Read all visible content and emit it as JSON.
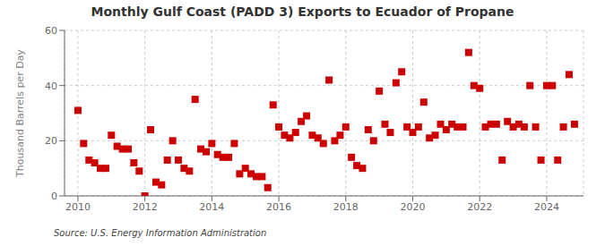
{
  "chart_data": {
    "type": "scatter",
    "title": "Monthly Gulf Coast (PADD 3) Exports to Ecuador of Propane",
    "y_label": "Thousand Barrels per Day",
    "annotation": "Source: U.S. Energy Information Administration",
    "color": "#cc0000",
    "marker": "square",
    "grid": true,
    "xlim": [
      2009.6,
      2025.1
    ],
    "xticks": [
      2010,
      2012,
      2014,
      2016,
      2018,
      2020,
      2022,
      2024
    ],
    "ylim": [
      0,
      60
    ],
    "yticks": [
      0,
      20,
      40,
      60
    ],
    "x": [
      2010.0,
      2010.17,
      2010.33,
      2010.5,
      2010.67,
      2010.83,
      2011.0,
      2011.17,
      2011.33,
      2011.5,
      2011.67,
      2011.83,
      2012.0,
      2012.17,
      2012.33,
      2012.5,
      2012.67,
      2012.83,
      2013.0,
      2013.17,
      2013.33,
      2013.5,
      2013.67,
      2013.83,
      2014.0,
      2014.17,
      2014.33,
      2014.5,
      2014.67,
      2014.83,
      2015.0,
      2015.17,
      2015.33,
      2015.5,
      2015.67,
      2015.83,
      2016.0,
      2016.17,
      2016.33,
      2016.5,
      2016.67,
      2016.83,
      2017.0,
      2017.17,
      2017.33,
      2017.5,
      2017.67,
      2017.83,
      2018.0,
      2018.17,
      2018.33,
      2018.5,
      2018.67,
      2018.83,
      2019.0,
      2019.17,
      2019.33,
      2019.5,
      2019.67,
      2019.83,
      2020.0,
      2020.17,
      2020.33,
      2020.5,
      2020.67,
      2020.83,
      2021.0,
      2021.17,
      2021.33,
      2021.5,
      2021.67,
      2021.83,
      2022.0,
      2022.17,
      2022.33,
      2022.5,
      2022.67,
      2022.83,
      2023.0,
      2023.17,
      2023.33,
      2023.5,
      2023.67,
      2023.83,
      2024.0,
      2024.17,
      2024.33,
      2024.5,
      2024.67,
      2024.83
    ],
    "values": [
      31,
      19,
      13,
      12,
      10,
      10,
      22,
      18,
      17,
      17,
      12,
      9,
      0,
      24,
      5,
      4,
      13,
      20,
      13,
      10,
      9,
      35,
      17,
      16,
      19,
      15,
      14,
      14,
      19,
      8,
      10,
      8,
      7,
      7,
      3,
      33,
      25,
      22,
      21,
      23,
      27,
      29,
      22,
      21,
      19,
      42,
      20,
      22,
      25,
      14,
      11,
      10,
      24,
      20,
      38,
      26,
      23,
      41,
      45,
      25,
      23,
      25,
      34,
      21,
      22,
      26,
      24,
      26,
      25,
      25,
      52,
      40,
      39,
      25,
      26,
      26,
      13,
      27,
      25,
      26,
      25,
      40,
      25,
      13,
      40,
      40,
      13,
      25,
      44,
      26
    ]
  }
}
